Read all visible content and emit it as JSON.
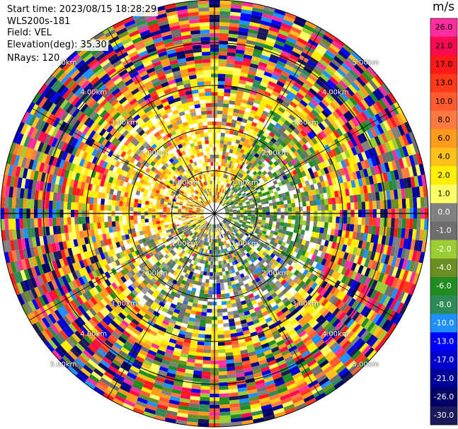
{
  "info": {
    "start_time": "Start time: 2023/08/15 18:28:29",
    "instrument": "WLS200s-181",
    "field": "Field: VEL",
    "elevation": "Elevation(deg): 35.30",
    "nrays": "NRays: 120"
  },
  "chart_data": {
    "type": "heatmap",
    "projection": "polar",
    "field": "VEL",
    "unit": "m/s",
    "nrays": 120,
    "elevation_deg": 35.3,
    "range_rings_km": [
      1,
      2,
      3,
      4,
      5
    ],
    "ring_labels": [
      "1.00km",
      "2.00km",
      "3.00km",
      "4.00km",
      "5.00km"
    ],
    "colorbar": {
      "ticks": [
        "26.0",
        "21.0",
        "17.0",
        "13.0",
        "10.0",
        "8.0",
        "6.0",
        "4.0",
        "2.0",
        "1.0",
        "0.0",
        "-1.0",
        "-2.0",
        "-4.0",
        "-6.0",
        "-8.0",
        "-10.0",
        "-13.0",
        "-17.0",
        "-21.0",
        "-26.0",
        "-30.0"
      ],
      "colors": [
        "#ff2d9e",
        "#ff0a50",
        "#ff1a1a",
        "#ff3a1a",
        "#ff5a30",
        "#ff7a40",
        "#ff9a1a",
        "#ffc21a",
        "#ffee00",
        "#ffff66",
        "#808080",
        "#6e6e6e",
        "#9acd32",
        "#6b8e23",
        "#228b22",
        "#2e8b57",
        "#1e90ff",
        "#0000ff",
        "#0000cc",
        "#000099",
        "#000066",
        "#1a1a5a"
      ]
    }
  }
}
